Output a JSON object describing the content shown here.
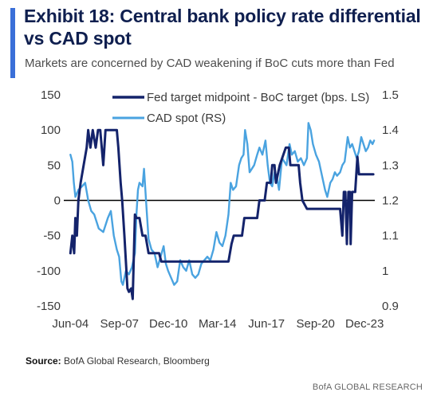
{
  "header": {
    "title": "Exhibit 18: Central bank policy rate differential vs CAD spot",
    "subtitle": "Markets are concerned by CAD weakening if BoC cuts more than Fed",
    "accent_color": "#3a6fd8"
  },
  "footer": {
    "source_label": "Source:",
    "source_text": "BofA Global Research, Bloomberg",
    "brand": "BofA GLOBAL RESEARCH"
  },
  "chart_data": {
    "type": "line",
    "title": "",
    "x_tick_labels": [
      "Jun-04",
      "Sep-07",
      "Dec-10",
      "Mar-14",
      "Jun-17",
      "Sep-20",
      "Dec-23"
    ],
    "x_tick_values": [
      2004.42,
      2007.67,
      2010.92,
      2014.17,
      2017.42,
      2020.67,
      2023.92
    ],
    "xlim": [
      2004.3,
      2024.6
    ],
    "y_left": {
      "ylim": [
        -150,
        150
      ],
      "ticks": [
        -150,
        -100,
        -50,
        0,
        50,
        100,
        150
      ]
    },
    "y_right": {
      "ylim": [
        0.9,
        1.5
      ],
      "ticks": [
        "0.9",
        "1",
        "1.1",
        "1.2",
        "1.3",
        "1.4",
        "1.5"
      ]
    },
    "zero_line": 0,
    "grid": false,
    "legend_position": "top-center",
    "series": [
      {
        "name": "Fed target midpoint - BoC target (bps. LS)",
        "axis": "left",
        "color": "#14236b",
        "points": [
          [
            2004.42,
            -75
          ],
          [
            2004.55,
            -50
          ],
          [
            2004.67,
            -75
          ],
          [
            2004.75,
            -25
          ],
          [
            2004.85,
            -50
          ],
          [
            2004.95,
            0
          ],
          [
            2005.1,
            25
          ],
          [
            2005.3,
            50
          ],
          [
            2005.5,
            75
          ],
          [
            2005.6,
            100
          ],
          [
            2005.75,
            75
          ],
          [
            2005.9,
            100
          ],
          [
            2006.1,
            75
          ],
          [
            2006.25,
            100
          ],
          [
            2006.4,
            100
          ],
          [
            2006.6,
            50
          ],
          [
            2006.75,
            100
          ],
          [
            2007.5,
            100
          ],
          [
            2007.6,
            75
          ],
          [
            2007.75,
            25
          ],
          [
            2007.85,
            0
          ],
          [
            2008.0,
            -50
          ],
          [
            2008.2,
            -125
          ],
          [
            2008.3,
            -130
          ],
          [
            2008.45,
            -125
          ],
          [
            2008.55,
            -140
          ],
          [
            2008.7,
            -20
          ],
          [
            2008.8,
            -25
          ],
          [
            2009.0,
            -25
          ],
          [
            2009.2,
            -50
          ],
          [
            2009.4,
            -50
          ],
          [
            2009.6,
            -75
          ],
          [
            2010.3,
            -75
          ],
          [
            2010.45,
            -87
          ],
          [
            2013.3,
            -87
          ],
          [
            2014.9,
            -87
          ],
          [
            2015.1,
            -62
          ],
          [
            2015.25,
            -50
          ],
          [
            2015.8,
            -50
          ],
          [
            2015.95,
            -25
          ],
          [
            2016.8,
            -25
          ],
          [
            2016.95,
            0
          ],
          [
            2017.3,
            0
          ],
          [
            2017.45,
            25
          ],
          [
            2017.7,
            25
          ],
          [
            2017.8,
            50
          ],
          [
            2017.95,
            50
          ],
          [
            2018.05,
            25
          ],
          [
            2018.3,
            50
          ],
          [
            2018.7,
            75
          ],
          [
            2018.9,
            75
          ],
          [
            2019.0,
            50
          ],
          [
            2019.55,
            50
          ],
          [
            2019.65,
            25
          ],
          [
            2019.8,
            0
          ],
          [
            2020.1,
            -12
          ],
          [
            2022.3,
            -12
          ],
          [
            2022.45,
            -50
          ],
          [
            2022.55,
            12
          ],
          [
            2022.65,
            12
          ],
          [
            2022.75,
            -62
          ],
          [
            2022.85,
            12
          ],
          [
            2022.95,
            12
          ],
          [
            2023.0,
            -62
          ],
          [
            2023.1,
            12
          ],
          [
            2023.3,
            12
          ],
          [
            2023.45,
            62
          ],
          [
            2023.55,
            37
          ],
          [
            2024.5,
            37
          ]
        ]
      },
      {
        "name": "CAD spot (RS)",
        "axis": "right",
        "color": "#4aa3e0",
        "points": [
          [
            2004.42,
            1.33
          ],
          [
            2004.55,
            1.31
          ],
          [
            2004.65,
            1.25
          ],
          [
            2004.75,
            1.21
          ],
          [
            2004.85,
            1.22
          ],
          [
            2004.95,
            1.23
          ],
          [
            2005.2,
            1.24
          ],
          [
            2005.4,
            1.25
          ],
          [
            2005.6,
            1.2
          ],
          [
            2005.8,
            1.17
          ],
          [
            2006.0,
            1.16
          ],
          [
            2006.3,
            1.12
          ],
          [
            2006.6,
            1.11
          ],
          [
            2006.9,
            1.15
          ],
          [
            2007.1,
            1.17
          ],
          [
            2007.3,
            1.1
          ],
          [
            2007.5,
            1.06
          ],
          [
            2007.65,
            1.04
          ],
          [
            2007.8,
            0.97
          ],
          [
            2007.9,
            0.96
          ],
          [
            2008.1,
            1.0
          ],
          [
            2008.3,
            0.99
          ],
          [
            2008.5,
            1.01
          ],
          [
            2008.7,
            1.05
          ],
          [
            2008.8,
            1.16
          ],
          [
            2008.9,
            1.23
          ],
          [
            2009.0,
            1.25
          ],
          [
            2009.2,
            1.24
          ],
          [
            2009.3,
            1.29
          ],
          [
            2009.45,
            1.19
          ],
          [
            2009.6,
            1.09
          ],
          [
            2009.8,
            1.06
          ],
          [
            2010.0,
            1.05
          ],
          [
            2010.2,
            1.01
          ],
          [
            2010.4,
            1.04
          ],
          [
            2010.6,
            1.07
          ],
          [
            2010.75,
            1.02
          ],
          [
            2010.9,
            1.0
          ],
          [
            2011.1,
            0.98
          ],
          [
            2011.3,
            0.96
          ],
          [
            2011.5,
            0.97
          ],
          [
            2011.7,
            1.03
          ],
          [
            2011.9,
            1.01
          ],
          [
            2012.1,
            1.0
          ],
          [
            2012.3,
            1.03
          ],
          [
            2012.5,
            0.99
          ],
          [
            2012.7,
            0.98
          ],
          [
            2012.9,
            0.99
          ],
          [
            2013.1,
            1.02
          ],
          [
            2013.3,
            1.03
          ],
          [
            2013.5,
            1.04
          ],
          [
            2013.7,
            1.03
          ],
          [
            2013.9,
            1.06
          ],
          [
            2014.1,
            1.11
          ],
          [
            2014.3,
            1.08
          ],
          [
            2014.5,
            1.07
          ],
          [
            2014.7,
            1.1
          ],
          [
            2014.9,
            1.16
          ],
          [
            2015.05,
            1.25
          ],
          [
            2015.2,
            1.23
          ],
          [
            2015.4,
            1.24
          ],
          [
            2015.6,
            1.3
          ],
          [
            2015.75,
            1.32
          ],
          [
            2015.9,
            1.33
          ],
          [
            2016.0,
            1.4
          ],
          [
            2016.15,
            1.36
          ],
          [
            2016.3,
            1.28
          ],
          [
            2016.45,
            1.29
          ],
          [
            2016.6,
            1.3
          ],
          [
            2016.8,
            1.33
          ],
          [
            2016.95,
            1.35
          ],
          [
            2017.15,
            1.33
          ],
          [
            2017.35,
            1.37
          ],
          [
            2017.5,
            1.3
          ],
          [
            2017.65,
            1.25
          ],
          [
            2017.8,
            1.24
          ],
          [
            2017.95,
            1.28
          ],
          [
            2018.1,
            1.27
          ],
          [
            2018.25,
            1.23
          ],
          [
            2018.45,
            1.32
          ],
          [
            2018.6,
            1.31
          ],
          [
            2018.75,
            1.3
          ],
          [
            2018.95,
            1.36
          ],
          [
            2019.1,
            1.33
          ],
          [
            2019.3,
            1.34
          ],
          [
            2019.5,
            1.31
          ],
          [
            2019.7,
            1.32
          ],
          [
            2019.9,
            1.3
          ],
          [
            2020.1,
            1.32
          ],
          [
            2020.2,
            1.42
          ],
          [
            2020.35,
            1.4
          ],
          [
            2020.5,
            1.36
          ],
          [
            2020.7,
            1.33
          ],
          [
            2020.9,
            1.31
          ],
          [
            2021.1,
            1.27
          ],
          [
            2021.3,
            1.23
          ],
          [
            2021.45,
            1.21
          ],
          [
            2021.65,
            1.25
          ],
          [
            2021.8,
            1.26
          ],
          [
            2021.95,
            1.28
          ],
          [
            2022.1,
            1.27
          ],
          [
            2022.3,
            1.28
          ],
          [
            2022.45,
            1.3
          ],
          [
            2022.6,
            1.31
          ],
          [
            2022.8,
            1.38
          ],
          [
            2022.95,
            1.35
          ],
          [
            2023.1,
            1.36
          ],
          [
            2023.25,
            1.34
          ],
          [
            2023.4,
            1.32
          ],
          [
            2023.55,
            1.34
          ],
          [
            2023.7,
            1.38
          ],
          [
            2023.85,
            1.36
          ],
          [
            2024.0,
            1.34
          ],
          [
            2024.15,
            1.35
          ],
          [
            2024.3,
            1.37
          ],
          [
            2024.45,
            1.36
          ],
          [
            2024.55,
            1.37
          ]
        ]
      }
    ]
  }
}
